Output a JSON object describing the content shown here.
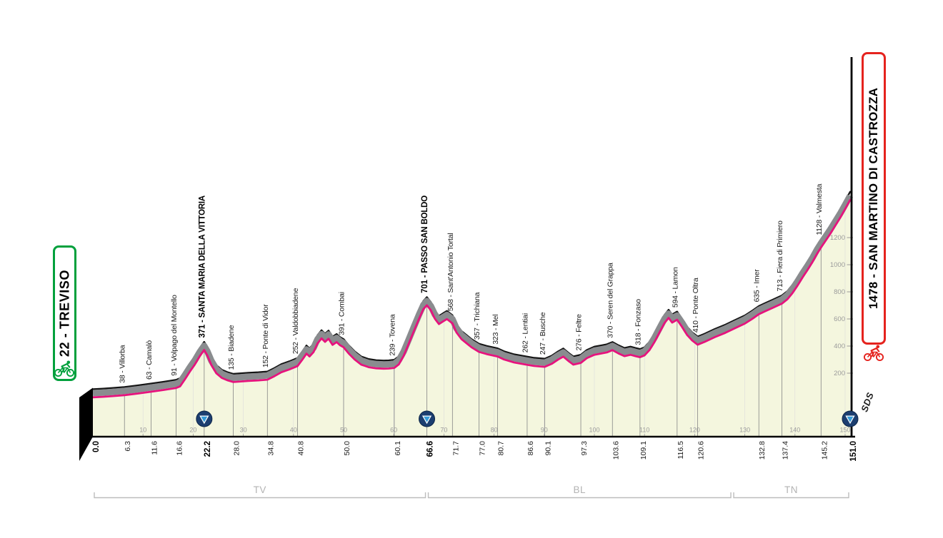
{
  "start": {
    "label": "22 - TREVISO"
  },
  "finish": {
    "label": "1478 - SAN MARTINO DI CASTROZZA"
  },
  "signature": "SDS",
  "colors": {
    "start_green": "#00A03C",
    "finish_red": "#E5231E",
    "profile_pink": "#E6137D",
    "road_fill": "#8A8C8F",
    "road_edge": "#151515",
    "area_fill": "#F4F6DE",
    "marker_navy": "#1C3E70",
    "marker_blue": "#379BD8"
  },
  "chart_data": {
    "type": "area",
    "x_range": [
      0,
      151
    ],
    "y_range": [
      0,
      1478
    ],
    "x_unit": "km",
    "y_unit": "m",
    "km_ticks": [
      10,
      20,
      30,
      40,
      50,
      60,
      70,
      80,
      90,
      100,
      110,
      120,
      130,
      140,
      150
    ],
    "elevation_ticks": [
      200,
      400,
      600,
      800,
      1000,
      1200
    ],
    "markers_km": [
      22.2,
      66.6,
      151
    ],
    "provinces": [
      {
        "label": "TV",
        "from_km": 0,
        "to_km": 66.6
      },
      {
        "label": "BL",
        "from_km": 66.6,
        "to_km": 127.5
      },
      {
        "label": "TN",
        "from_km": 127.5,
        "to_km": 151
      }
    ],
    "waypoints": [
      {
        "km": 0,
        "km_label": "0.0",
        "elev": 22,
        "name": "",
        "bold": true
      },
      {
        "km": 6.3,
        "km_label": "6.3",
        "elev": 38,
        "name": "Villorba",
        "bold": false
      },
      {
        "km": 11.6,
        "km_label": "11.6",
        "elev": 63,
        "name": "Camalò",
        "bold": false
      },
      {
        "km": 16.6,
        "km_label": "16.6",
        "elev": 91,
        "name": "Volpago del Montello",
        "bold": false
      },
      {
        "km": 22.2,
        "km_label": "22.2",
        "elev": 371,
        "name": "SANTA MARIA DELLA VITTORIA",
        "bold": true
      },
      {
        "km": 28,
        "km_label": "28.0",
        "elev": 135,
        "name": "Biadene",
        "bold": false
      },
      {
        "km": 34.8,
        "km_label": "34.8",
        "elev": 152,
        "name": "Ponte di Vidor",
        "bold": false
      },
      {
        "km": 40.8,
        "km_label": "40.8",
        "elev": 252,
        "name": "Valdobbiadene",
        "bold": false
      },
      {
        "km": 50,
        "km_label": "50.0",
        "elev": 391,
        "name": "Combai",
        "bold": false
      },
      {
        "km": 60.1,
        "km_label": "60.1",
        "elev": 239,
        "name": "Tovena",
        "bold": false
      },
      {
        "km": 66.6,
        "km_label": "66.6",
        "elev": 701,
        "name": "PASSO SAN BOLDO",
        "bold": true
      },
      {
        "km": 71.7,
        "km_label": "71.7",
        "elev": 568,
        "name": "Sant'Antonio Tortal",
        "bold": false
      },
      {
        "km": 77,
        "km_label": "77.0",
        "elev": 357,
        "name": "Trichiana",
        "bold": false
      },
      {
        "km": 80.7,
        "km_label": "80.7",
        "elev": 323,
        "name": "Mel",
        "bold": false
      },
      {
        "km": 86.6,
        "km_label": "86.6",
        "elev": 262,
        "name": "Lentiai",
        "bold": false
      },
      {
        "km": 90.1,
        "km_label": "90.1",
        "elev": 247,
        "name": "Busche",
        "bold": false
      },
      {
        "km": 97.3,
        "km_label": "97.3",
        "elev": 276,
        "name": "Feltre",
        "bold": false
      },
      {
        "km": 103.6,
        "km_label": "103.6",
        "elev": 370,
        "name": "Seren del Grappa",
        "bold": false
      },
      {
        "km": 109.1,
        "km_label": "109.1",
        "elev": 318,
        "name": "Fonzaso",
        "bold": false
      },
      {
        "km": 116.5,
        "km_label": "116.5",
        "elev": 594,
        "name": "Lamon",
        "bold": false
      },
      {
        "km": 120.6,
        "km_label": "120.6",
        "elev": 410,
        "name": "Ponte Oltra",
        "bold": false
      },
      {
        "km": 132.8,
        "km_label": "132.8",
        "elev": 635,
        "name": "Imer",
        "bold": false
      },
      {
        "km": 137.4,
        "km_label": "137.4",
        "elev": 713,
        "name": "Fiera di Primiero",
        "bold": false
      },
      {
        "km": 145.2,
        "km_label": "145.2",
        "elev": 1128,
        "name": "Valmesta",
        "bold": false
      },
      {
        "km": 151,
        "km_label": "151.0",
        "elev": 1478,
        "name": "",
        "bold": true
      }
    ],
    "profile": [
      [
        0,
        22
      ],
      [
        2,
        26
      ],
      [
        4,
        31
      ],
      [
        6.3,
        38
      ],
      [
        9,
        50
      ],
      [
        11.6,
        63
      ],
      [
        14,
        76
      ],
      [
        16.6,
        91
      ],
      [
        17.4,
        103
      ],
      [
        18.3,
        152
      ],
      [
        19.3,
        210
      ],
      [
        20.3,
        262
      ],
      [
        21.3,
        325
      ],
      [
        22.2,
        371
      ],
      [
        22.8,
        332
      ],
      [
        23.6,
        262
      ],
      [
        24.6,
        200
      ],
      [
        25.7,
        165
      ],
      [
        26.8,
        148
      ],
      [
        28,
        135
      ],
      [
        29.5,
        139
      ],
      [
        31,
        143
      ],
      [
        33,
        147
      ],
      [
        34.8,
        152
      ],
      [
        36.2,
        178
      ],
      [
        37.6,
        207
      ],
      [
        39.2,
        228
      ],
      [
        40.8,
        252
      ],
      [
        41.8,
        301
      ],
      [
        42.6,
        344
      ],
      [
        43.2,
        323
      ],
      [
        44,
        356
      ],
      [
        44.8,
        420
      ],
      [
        45.6,
        457
      ],
      [
        46.3,
        431
      ],
      [
        47,
        454
      ],
      [
        47.8,
        409
      ],
      [
        48.6,
        429
      ],
      [
        49.3,
        406
      ],
      [
        50,
        391
      ],
      [
        51,
        346
      ],
      [
        52.2,
        301
      ],
      [
        53.5,
        263
      ],
      [
        55,
        244
      ],
      [
        56.5,
        236
      ],
      [
        58,
        233
      ],
      [
        59,
        234
      ],
      [
        60.1,
        239
      ],
      [
        61,
        264
      ],
      [
        62,
        330
      ],
      [
        63,
        420
      ],
      [
        64,
        510
      ],
      [
        65,
        598
      ],
      [
        65.9,
        672
      ],
      [
        66.6,
        701
      ],
      [
        67.4,
        664
      ],
      [
        68.2,
        601
      ],
      [
        69,
        562
      ],
      [
        69.8,
        581
      ],
      [
        70.6,
        599
      ],
      [
        71.7,
        568
      ],
      [
        72.5,
        501
      ],
      [
        73.5,
        451
      ],
      [
        74.5,
        421
      ],
      [
        75.5,
        391
      ],
      [
        77,
        357
      ],
      [
        78.5,
        341
      ],
      [
        80.7,
        323
      ],
      [
        82,
        301
      ],
      [
        84,
        279
      ],
      [
        86.6,
        262
      ],
      [
        88,
        253
      ],
      [
        90.1,
        247
      ],
      [
        91.5,
        269
      ],
      [
        92.8,
        301
      ],
      [
        93.8,
        322
      ],
      [
        94.8,
        291
      ],
      [
        95.8,
        263
      ],
      [
        97.3,
        276
      ],
      [
        98.5,
        311
      ],
      [
        100,
        336
      ],
      [
        101.5,
        346
      ],
      [
        102.5,
        353
      ],
      [
        103.6,
        370
      ],
      [
        104.8,
        346
      ],
      [
        106,
        326
      ],
      [
        107.2,
        336
      ],
      [
        108.2,
        326
      ],
      [
        109.1,
        318
      ],
      [
        110,
        331
      ],
      [
        111,
        371
      ],
      [
        112,
        431
      ],
      [
        113,
        501
      ],
      [
        114,
        571
      ],
      [
        114.8,
        608
      ],
      [
        115.5,
        573
      ],
      [
        116.5,
        594
      ],
      [
        117.5,
        541
      ],
      [
        118.5,
        481
      ],
      [
        119.5,
        441
      ],
      [
        120.6,
        410
      ],
      [
        122,
        431
      ],
      [
        124,
        466
      ],
      [
        126,
        496
      ],
      [
        128,
        531
      ],
      [
        130,
        566
      ],
      [
        131.5,
        601
      ],
      [
        132.8,
        635
      ],
      [
        134,
        656
      ],
      [
        135.5,
        681
      ],
      [
        137.4,
        713
      ],
      [
        138.5,
        746
      ],
      [
        139.5,
        791
      ],
      [
        140.5,
        846
      ],
      [
        141.5,
        906
      ],
      [
        142.5,
        961
      ],
      [
        143.5,
        1021
      ],
      [
        144.4,
        1081
      ],
      [
        145.2,
        1128
      ],
      [
        146,
        1171
      ],
      [
        147,
        1226
      ],
      [
        148,
        1286
      ],
      [
        149,
        1346
      ],
      [
        150,
        1411
      ],
      [
        151,
        1478
      ]
    ]
  }
}
